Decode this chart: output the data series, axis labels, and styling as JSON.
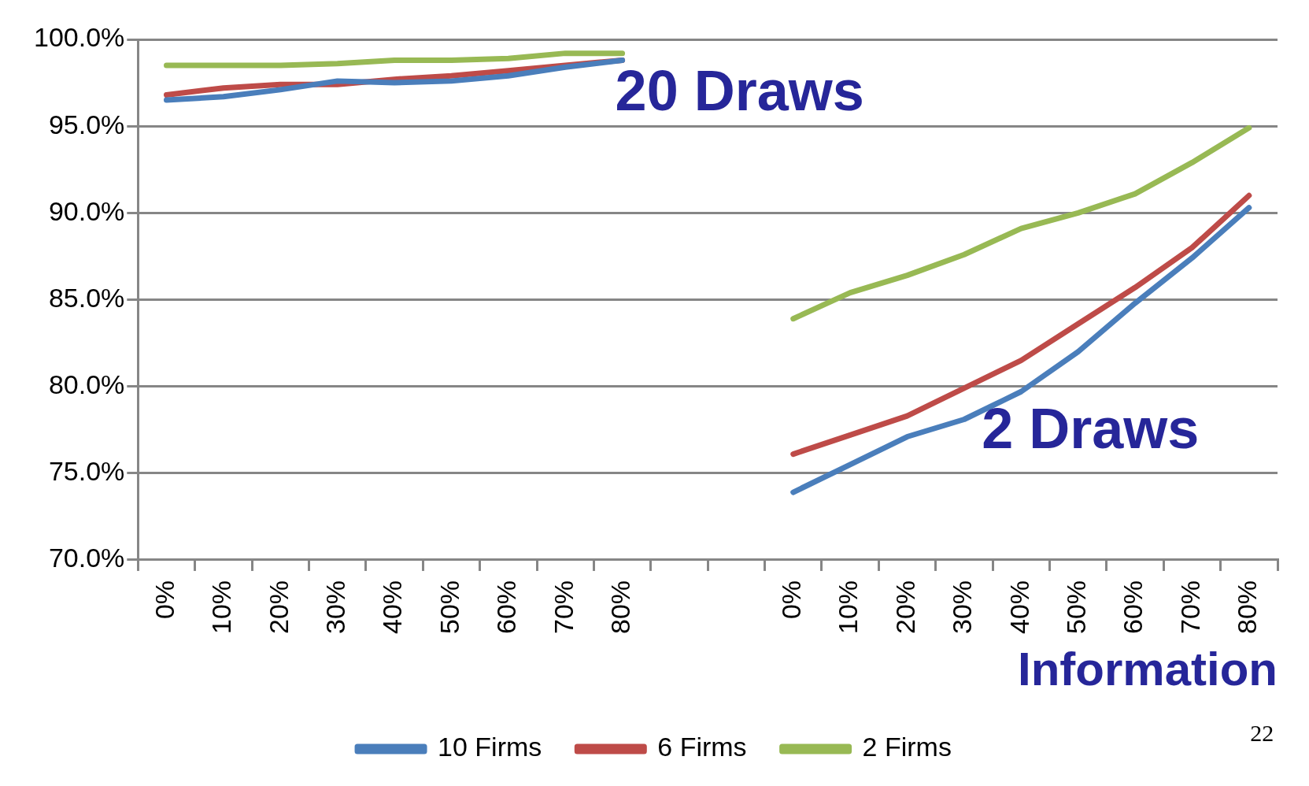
{
  "chart_data": {
    "type": "line",
    "xlabel": "Information",
    "categories": [
      "0%",
      "10%",
      "20%",
      "30%",
      "40%",
      "50%",
      "60%",
      "70%",
      "80%",
      null,
      null,
      "0%",
      "10%",
      "20%",
      "30%",
      "40%",
      "50%",
      "60%",
      "70%",
      "80%"
    ],
    "series": [
      {
        "name": "10 Firms",
        "color": "#4a7ebb",
        "values": [
          96.5,
          96.7,
          97.1,
          97.6,
          97.5,
          97.6,
          97.9,
          98.4,
          98.8,
          null,
          null,
          73.9,
          75.5,
          77.1,
          78.1,
          79.7,
          82.0,
          84.8,
          87.4,
          90.3
        ]
      },
      {
        "name": "6 Firms",
        "color": "#be4b48",
        "values": [
          96.8,
          97.2,
          97.4,
          97.4,
          97.7,
          97.9,
          98.2,
          98.5,
          98.8,
          null,
          null,
          76.1,
          77.2,
          78.3,
          79.9,
          81.5,
          83.6,
          85.7,
          88.0,
          91.0
        ]
      },
      {
        "name": "2 Firms",
        "color": "#98b954",
        "values": [
          98.5,
          98.5,
          98.5,
          98.6,
          98.8,
          98.8,
          98.9,
          99.2,
          99.2,
          null,
          null,
          83.9,
          85.4,
          86.4,
          87.6,
          89.1,
          90.0,
          91.1,
          92.9,
          94.9
        ]
      }
    ],
    "ylim": [
      70,
      100
    ],
    "yticks": [
      {
        "value": 70,
        "label": "70.0%"
      },
      {
        "value": 75,
        "label": "75.0%"
      },
      {
        "value": 80,
        "label": "80.0%"
      },
      {
        "value": 85,
        "label": "85.0%"
      },
      {
        "value": 90,
        "label": "90.0%"
      },
      {
        "value": 95,
        "label": "95.0%"
      },
      {
        "value": 100,
        "label": "100.0%"
      }
    ],
    "grid": "y",
    "legend": "bottom",
    "marker": "none",
    "line_style": "solid",
    "annotations": [
      "20 Draws",
      "2 Draws",
      "22"
    ]
  }
}
